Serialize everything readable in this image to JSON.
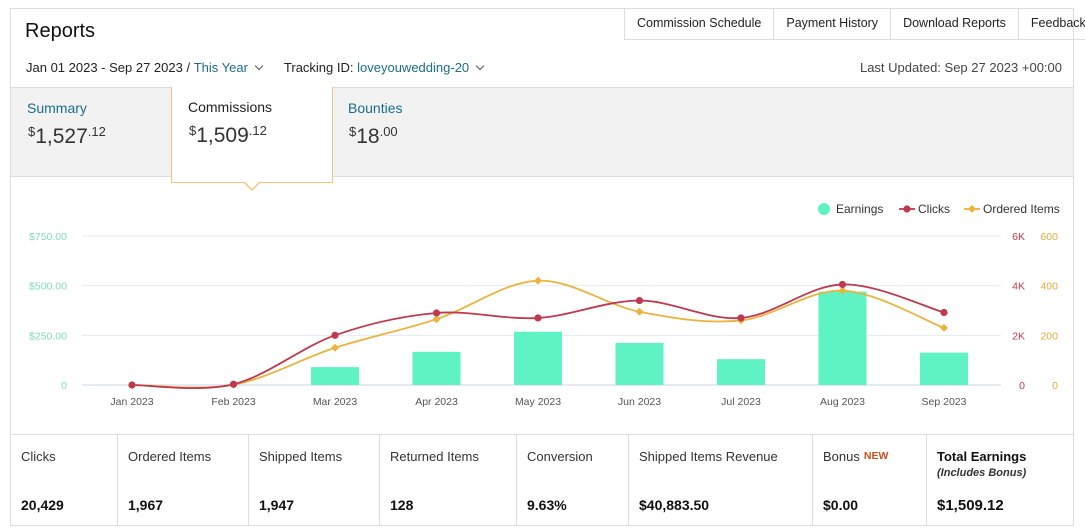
{
  "header": {
    "title": "Reports",
    "links": [
      "Commission Schedule",
      "Payment History",
      "Download Reports",
      "Feedback"
    ]
  },
  "filters": {
    "date_range": "Jan 01 2023 - Sep 27 2023 /",
    "period": "This Year",
    "tracking_label": "Tracking ID:",
    "tracking_id": "loveyouwedding-20"
  },
  "last_updated": "Last Updated: Sep 27 2023 +00:00",
  "tabs": [
    {
      "label": "Summary",
      "currency": "$",
      "whole": "1,527",
      "cents": ".12"
    },
    {
      "label": "Commissions",
      "currency": "$",
      "whole": "1,509",
      "cents": ".12"
    },
    {
      "label": "Bounties",
      "currency": "$",
      "whole": "18",
      "cents": ".00"
    }
  ],
  "colors": {
    "earnings": "#5ef2c4",
    "clicks": "#c0394e",
    "ordered_items": "#ecb33d",
    "link": "#1a6e8a"
  },
  "chart_data": {
    "type": "bar",
    "categories": [
      "Jan 2023",
      "Feb 2023",
      "Mar 2023",
      "Apr 2023",
      "May 2023",
      "Jun 2023",
      "Jul 2023",
      "Aug 2023",
      "Sep 2023"
    ],
    "legend": [
      "Earnings",
      "Clicks",
      "Ordered Items"
    ],
    "legend_position": "top-right",
    "series": [
      {
        "name": "Earnings",
        "type": "bar",
        "axis": "left",
        "values": [
          0,
          0,
          90,
          167,
          268,
          212,
          130,
          470,
          163
        ]
      },
      {
        "name": "Clicks",
        "type": "line",
        "axis": "right",
        "values": [
          0,
          30,
          2000,
          2900,
          2700,
          3400,
          2700,
          4050,
          2920
        ]
      },
      {
        "name": "Ordered Items",
        "type": "line",
        "axis": "right2",
        "values": [
          0,
          1,
          150,
          265,
          420,
          295,
          260,
          380,
          230
        ]
      }
    ],
    "y_left": {
      "ticks": [
        "$750.00",
        "$500.00",
        "$250.00",
        "0"
      ],
      "max": 750,
      "color": "#7fd9bd"
    },
    "y_right": {
      "ticks": [
        "6K",
        "4K",
        "2K",
        "0"
      ],
      "max": 6000,
      "color": "#c0394e"
    },
    "y_right2": {
      "ticks": [
        "600",
        "400",
        "200",
        "0"
      ],
      "max": 600,
      "color": "#e3a93a"
    },
    "grid": true
  },
  "stats": [
    {
      "label": "Clicks",
      "value": "20,429"
    },
    {
      "label": "Ordered Items",
      "value": "1,967"
    },
    {
      "label": "Shipped Items",
      "value": "1,947"
    },
    {
      "label": "Returned Items",
      "value": "128"
    },
    {
      "label": "Conversion",
      "value": "9.63%"
    },
    {
      "label": "Shipped Items Revenue",
      "value": "$40,883.50"
    },
    {
      "label": "Bonus",
      "badge": "NEW",
      "value": "$0.00"
    },
    {
      "label": "Total Earnings",
      "sublabel": "(Includes Bonus)",
      "value": "$1,509.12"
    }
  ]
}
